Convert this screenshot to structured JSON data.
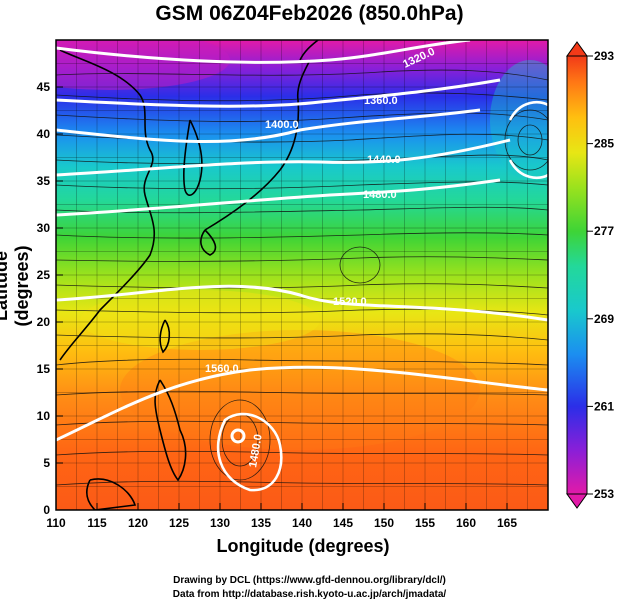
{
  "title": "GSM 06Z04Feb2026 (850.0hPa)",
  "xaxis": {
    "label": "Longitude (degrees)",
    "range": [
      110,
      170
    ],
    "ticks": [
      110,
      115,
      120,
      125,
      130,
      135,
      140,
      145,
      150,
      155,
      160,
      165
    ]
  },
  "yaxis": {
    "label": "Latitude (degrees)",
    "range": [
      0,
      50
    ],
    "ticks": [
      0,
      5,
      10,
      15,
      20,
      25,
      30,
      35,
      40,
      45
    ]
  },
  "colorbar": {
    "range": [
      253,
      293
    ],
    "ticks": [
      253,
      261,
      269,
      277,
      285,
      293
    ]
  },
  "contour_labels": [
    "1320.0",
    "1360.0",
    "1400.0",
    "1440.0",
    "1480.0",
    "1520.0",
    "1560.0",
    "1480.0"
  ],
  "credits": {
    "line1": "Drawing by DCL (https://www.gfd-dennou.org/library/dcl/)",
    "line2": "Data from http://database.rish.kyoto-u.ac.jp/arch/jmadata/"
  }
}
